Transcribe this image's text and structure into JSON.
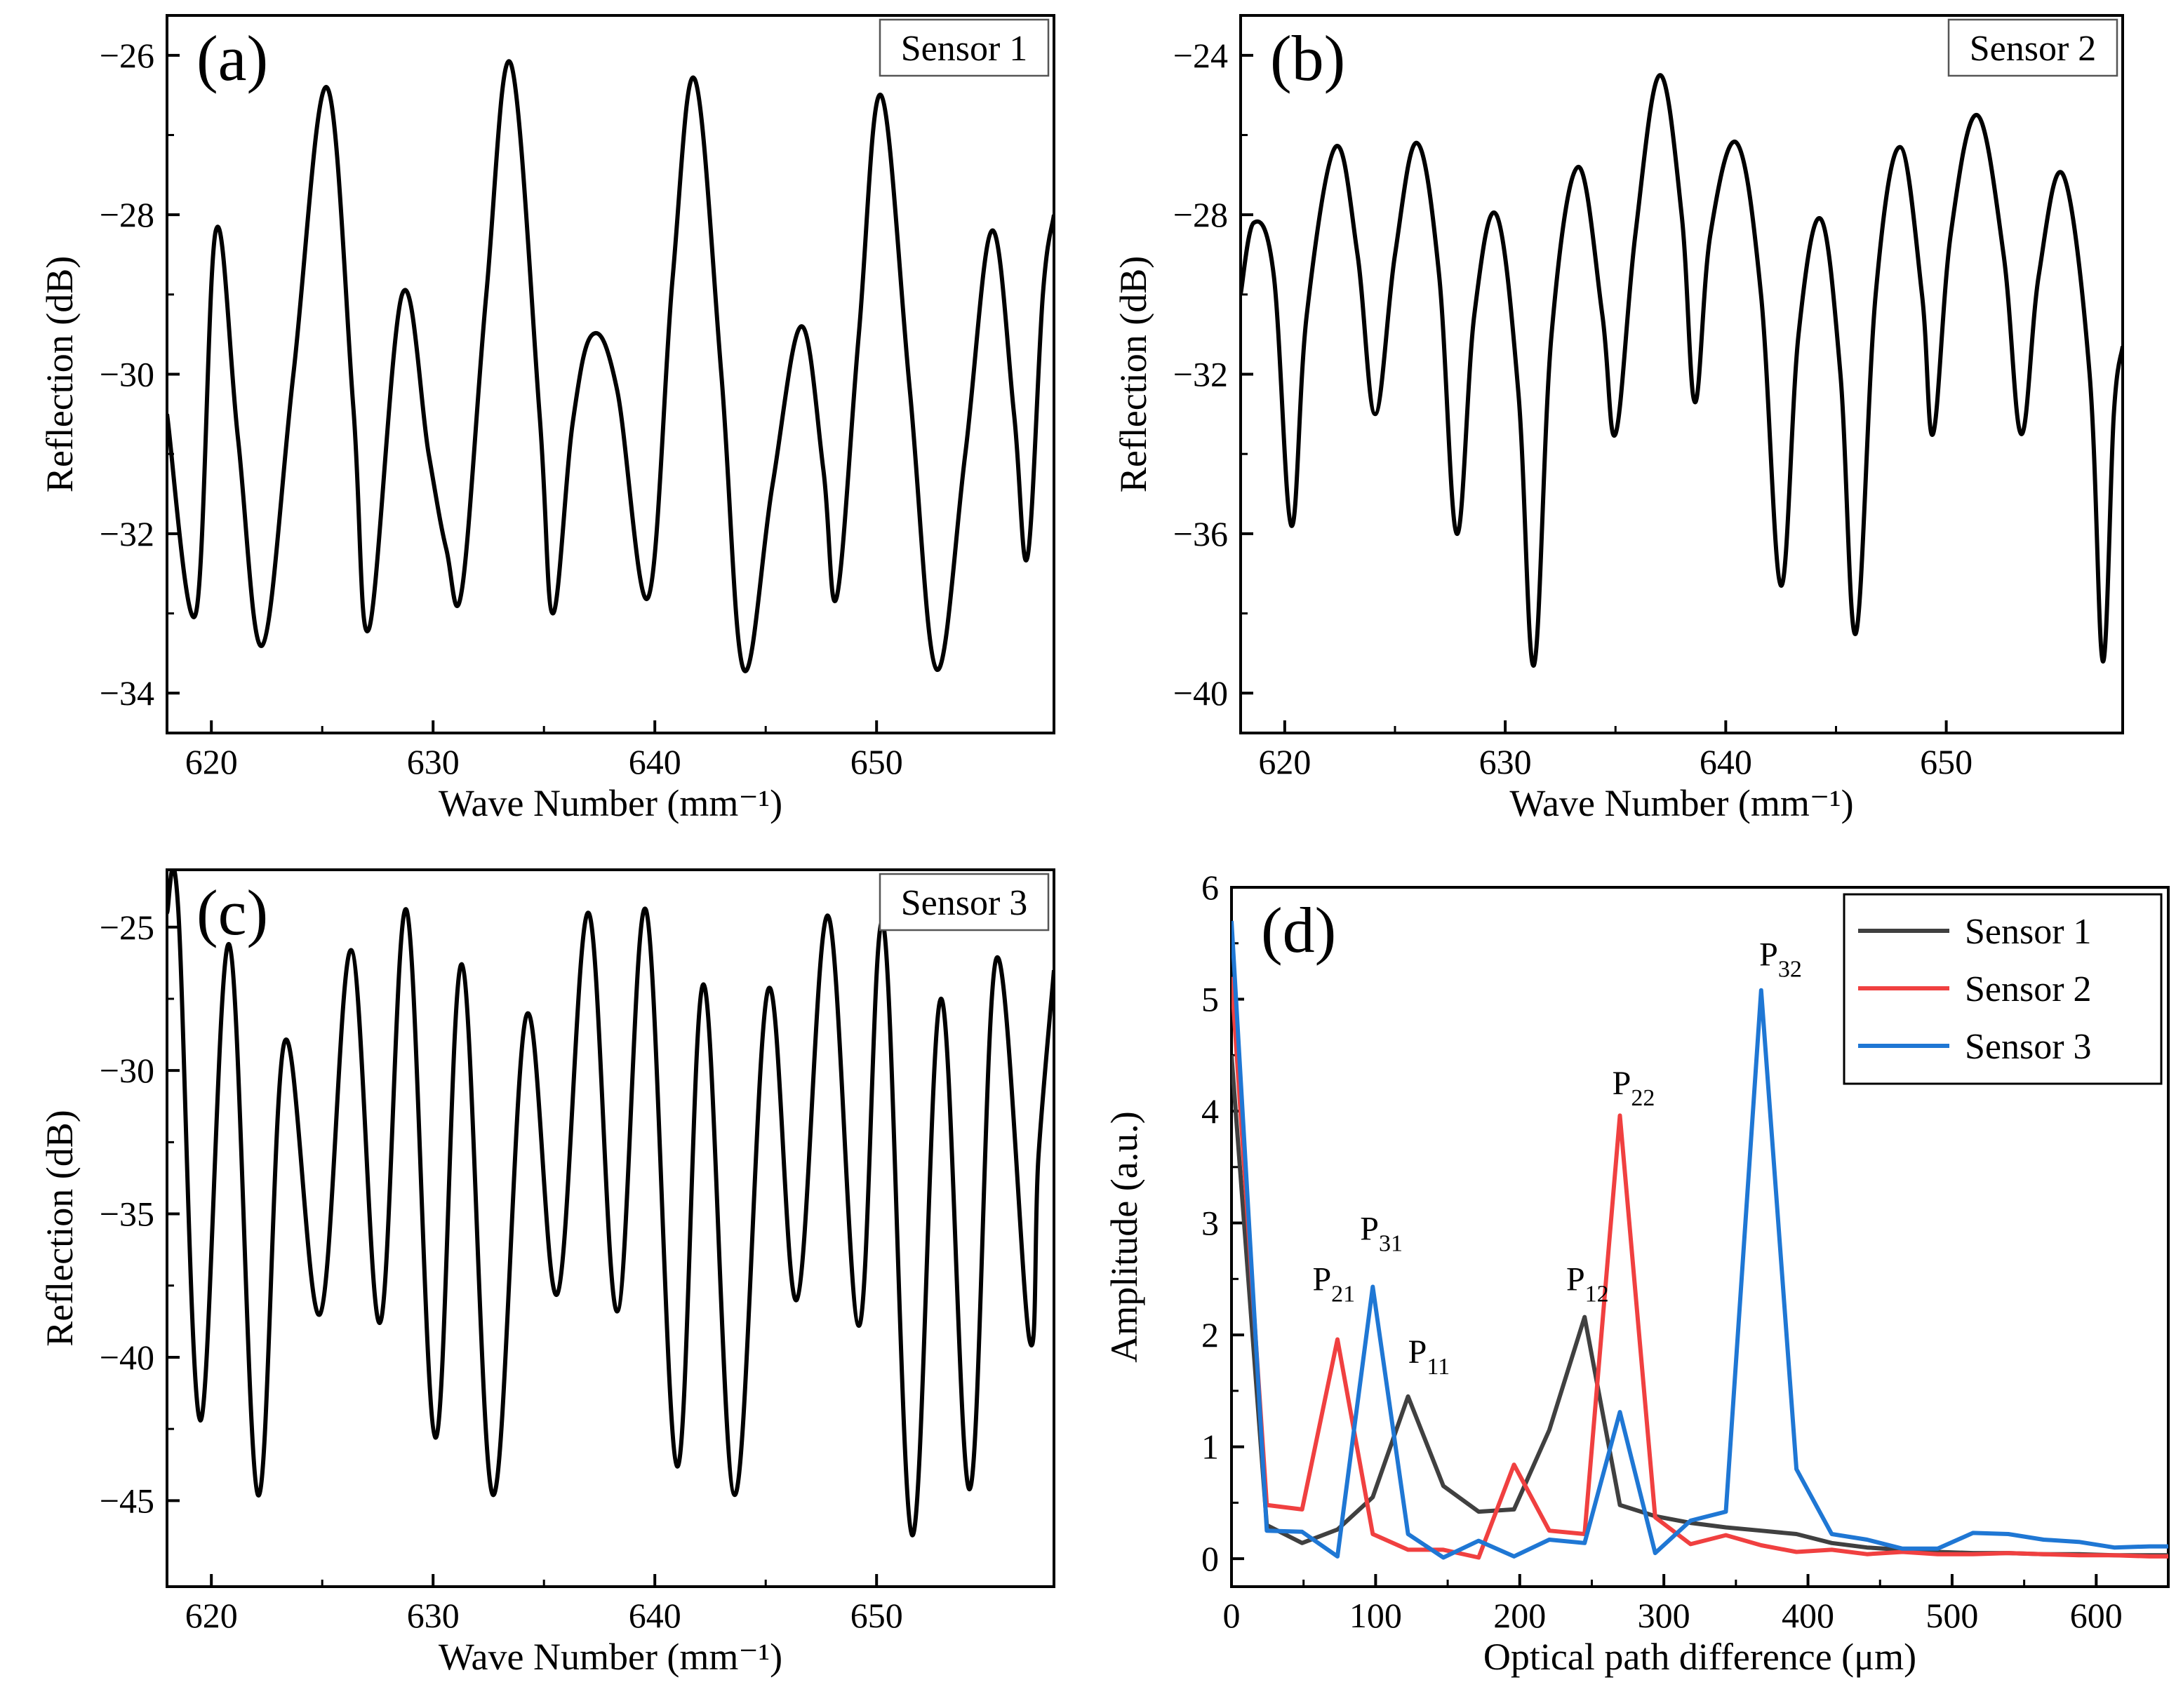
{
  "figure_title": "",
  "colors": {
    "sensor1": "#404040",
    "sensor2": "#f04040",
    "sensor3": "#1f77d4",
    "spectrum": "#000000"
  },
  "chart_data": [
    {
      "id": "a",
      "type": "line",
      "panel_label": "(a)",
      "box_label": "Sensor 1",
      "xlabel": "Wave Number (mm⁻¹)",
      "ylabel": "Reflection (dB)",
      "xlim": [
        618,
        658
      ],
      "ylim": [
        -34.5,
        -25.5
      ],
      "xticks": [
        620,
        630,
        640,
        650
      ],
      "yticks": [
        -26,
        -28,
        -30,
        -32,
        -34
      ],
      "ytick_labels": [
        "−26",
        "−28",
        "−30",
        "−32",
        "−34"
      ],
      "series": [
        {
          "name": "Sensor 1 spectrum",
          "color": "#000000",
          "x": [
            618.0,
            619.3,
            620.2,
            621.2,
            622.3,
            623.7,
            625.2,
            626.4,
            627.1,
            628.6,
            629.8,
            630.6,
            631.3,
            632.4,
            633.5,
            634.8,
            635.4,
            636.3,
            637.2,
            638.3,
            639.7,
            640.8,
            641.8,
            643.0,
            644.0,
            645.3,
            646.6,
            647.6,
            648.2,
            649.2,
            650.2,
            651.5,
            652.7,
            654.0,
            655.2,
            656.2,
            656.8,
            657.5,
            658.0
          ],
          "y": [
            -30.5,
            -33.0,
            -28.2,
            -30.8,
            -33.4,
            -30.0,
            -26.4,
            -30.4,
            -33.2,
            -29.0,
            -31.0,
            -32.2,
            -32.7,
            -29.0,
            -26.1,
            -30.5,
            -33.0,
            -30.6,
            -29.5,
            -30.2,
            -32.8,
            -28.8,
            -26.3,
            -30.0,
            -33.7,
            -31.4,
            -29.4,
            -31.2,
            -32.8,
            -29.5,
            -26.5,
            -30.2,
            -33.7,
            -31.0,
            -28.2,
            -30.5,
            -32.3,
            -29.0,
            -28.0
          ]
        }
      ]
    },
    {
      "id": "b",
      "type": "line",
      "panel_label": "(b)",
      "box_label": "Sensor 2",
      "xlabel": "Wave Number (mm⁻¹)",
      "ylabel": "Reflection (dB)",
      "xlim": [
        618,
        658
      ],
      "ylim": [
        -41,
        -23
      ],
      "xticks": [
        620,
        630,
        640,
        650
      ],
      "yticks": [
        -24,
        -28,
        -32,
        -36,
        -40
      ],
      "ytick_labels": [
        "−24",
        "−28",
        "−32",
        "−36",
        "−40"
      ],
      "series": [
        {
          "name": "Sensor 2 spectrum",
          "color": "#000000",
          "x": [
            618.0,
            618.6,
            619.5,
            620.3,
            621.0,
            622.3,
            623.3,
            624.1,
            625.0,
            626.0,
            627.0,
            627.8,
            628.6,
            629.6,
            630.6,
            631.3,
            632.1,
            633.3,
            634.4,
            635.0,
            635.9,
            637.0,
            638.0,
            638.6,
            639.3,
            640.5,
            641.6,
            642.5,
            643.3,
            644.3,
            645.2,
            645.9,
            646.8,
            647.9,
            648.9,
            649.4,
            650.2,
            651.4,
            652.6,
            653.4,
            654.2,
            655.3,
            656.5,
            657.1,
            657.6,
            658.0
          ],
          "y": [
            -30.0,
            -28.2,
            -29.5,
            -35.8,
            -30.5,
            -26.3,
            -29.0,
            -33.0,
            -29.0,
            -26.2,
            -29.5,
            -36.0,
            -30.5,
            -28.0,
            -32.5,
            -39.3,
            -31.0,
            -26.8,
            -30.5,
            -33.5,
            -28.5,
            -24.5,
            -28.0,
            -32.7,
            -28.5,
            -26.2,
            -30.0,
            -37.3,
            -31.0,
            -28.1,
            -32.0,
            -38.5,
            -30.0,
            -26.3,
            -30.0,
            -33.5,
            -28.5,
            -25.5,
            -29.0,
            -33.5,
            -29.5,
            -27.0,
            -32.0,
            -39.2,
            -33.0,
            -31.3
          ]
        }
      ]
    },
    {
      "id": "c",
      "type": "line",
      "panel_label": "(c)",
      "box_label": "Sensor 3",
      "xlabel": "Wave Number (mm⁻¹)",
      "ylabel": "Reflection (dB)",
      "xlim": [
        618,
        658
      ],
      "ylim": [
        -48,
        -23
      ],
      "xticks": [
        620,
        630,
        640,
        650
      ],
      "yticks": [
        -25,
        -30,
        -35,
        -40,
        -45
      ],
      "ytick_labels": [
        "−25",
        "−30",
        "−35",
        "−40",
        "−45"
      ],
      "series": [
        {
          "name": "Sensor 3 spectrum",
          "color": "#000000",
          "x": [
            618.0,
            618.5,
            619.5,
            620.8,
            622.1,
            623.3,
            624.9,
            626.3,
            627.6,
            628.8,
            630.1,
            631.3,
            632.7,
            634.2,
            635.6,
            637.0,
            638.3,
            639.6,
            641.0,
            642.2,
            643.6,
            645.1,
            646.4,
            647.8,
            649.2,
            650.3,
            651.6,
            652.9,
            654.2,
            655.4,
            656.9,
            657.3,
            658.0
          ],
          "y": [
            -24.5,
            -24.3,
            -42.2,
            -25.6,
            -44.8,
            -29.0,
            -38.5,
            -25.8,
            -38.8,
            -24.4,
            -42.8,
            -26.3,
            -44.8,
            -28.1,
            -37.8,
            -24.5,
            -38.4,
            -24.4,
            -43.8,
            -27.0,
            -44.8,
            -27.2,
            -38.0,
            -24.6,
            -38.9,
            -24.9,
            -46.2,
            -27.5,
            -44.6,
            -26.1,
            -39.4,
            -33.0,
            -26.5
          ]
        }
      ]
    },
    {
      "id": "d",
      "type": "line",
      "panel_label": "(d)",
      "xlabel": "Optical path difference (μm)",
      "ylabel": "Amplitude (a.u.)",
      "xlim": [
        0,
        650
      ],
      "ylim": [
        -0.25,
        6
      ],
      "xticks": [
        0,
        100,
        200,
        300,
        400,
        500,
        600
      ],
      "yticks": [
        0,
        1,
        2,
        3,
        4,
        5,
        6
      ],
      "legend_position": "top-right",
      "series": [
        {
          "name": "Sensor 1",
          "color": "#404040",
          "x": [
            0,
            24.5,
            49,
            73.5,
            98,
            122.5,
            147,
            171.5,
            196,
            220.5,
            245,
            269.5,
            294,
            318.5,
            343,
            367.5,
            392,
            416.5,
            441,
            465.5,
            490,
            514.5,
            539,
            563.5,
            588,
            612.5,
            637,
            650
          ],
          "y": [
            4.5,
            0.3,
            0.14,
            0.26,
            0.55,
            1.45,
            0.65,
            0.42,
            0.44,
            1.15,
            2.16,
            0.48,
            0.38,
            0.32,
            0.28,
            0.25,
            0.22,
            0.14,
            0.1,
            0.08,
            0.06,
            0.05,
            0.05,
            0.04,
            0.04,
            0.03,
            0.03,
            0.03
          ]
        },
        {
          "name": "Sensor 2",
          "color": "#f04040",
          "x": [
            0,
            24.5,
            49,
            73.5,
            98,
            122.5,
            147,
            171.5,
            196,
            220.5,
            245,
            269.5,
            294,
            318.5,
            343,
            367.5,
            392,
            416.5,
            441,
            465.5,
            490,
            514.5,
            539,
            563.5,
            588,
            612.5,
            637,
            650
          ],
          "y": [
            5.2,
            0.48,
            0.44,
            1.96,
            0.22,
            0.08,
            0.08,
            0.01,
            0.84,
            0.25,
            0.22,
            3.96,
            0.37,
            0.13,
            0.21,
            0.12,
            0.06,
            0.08,
            0.04,
            0.06,
            0.04,
            0.04,
            0.05,
            0.04,
            0.03,
            0.03,
            0.02,
            0.02
          ]
        },
        {
          "name": "Sensor 3",
          "color": "#1f77d4",
          "x": [
            0,
            24.5,
            49,
            73.5,
            98,
            122.5,
            147,
            171.5,
            196,
            220.5,
            245,
            269.5,
            294,
            318.5,
            343,
            367.5,
            392,
            416.5,
            441,
            465.5,
            490,
            514.5,
            539,
            563.5,
            588,
            612.5,
            637,
            650
          ],
          "y": [
            5.7,
            0.25,
            0.24,
            0.02,
            2.43,
            0.22,
            0.01,
            0.16,
            0.02,
            0.17,
            0.14,
            1.31,
            0.05,
            0.34,
            0.42,
            5.08,
            0.8,
            0.22,
            0.17,
            0.09,
            0.09,
            0.23,
            0.22,
            0.17,
            0.15,
            0.1,
            0.11,
            0.11
          ]
        }
      ],
      "annotations": [
        {
          "main": "P",
          "sub": "21",
          "x": 71,
          "y": 2.4
        },
        {
          "main": "P",
          "sub": "31",
          "x": 104,
          "y": 2.85
        },
        {
          "main": "P",
          "sub": "11",
          "x": 137,
          "y": 1.75
        },
        {
          "main": "P",
          "sub": "12",
          "x": 247,
          "y": 2.4
        },
        {
          "main": "P",
          "sub": "22",
          "x": 279,
          "y": 4.15
        },
        {
          "main": "P",
          "sub": "32",
          "x": 381,
          "y": 5.3
        }
      ]
    }
  ]
}
